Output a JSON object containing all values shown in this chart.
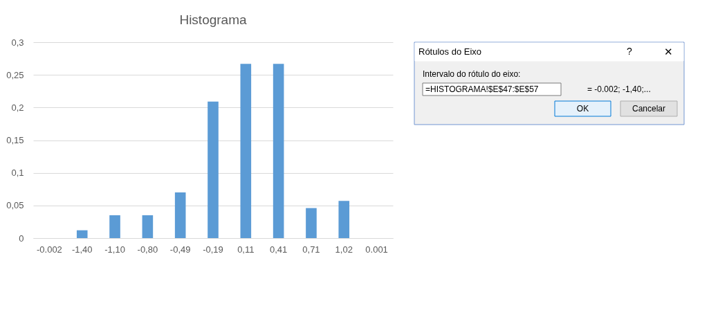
{
  "chart_data": [
    {
      "type": "bar",
      "title": "Histograma",
      "categories": [
        "-0.002",
        "-1,40",
        "-1,10",
        "-0,80",
        "-0,49",
        "-0,19",
        "0,11",
        "0,41",
        "0,71",
        "1,02",
        "0.001"
      ],
      "values": [
        0,
        0.012,
        0.035,
        0.035,
        0.07,
        0.209,
        0.267,
        0.267,
        0.046,
        0.057,
        0
      ],
      "color": "#5b9bd5",
      "ylim": [
        0,
        0.3
      ],
      "yticks": [
        0,
        {
          "value": 0.05,
          "label": "0,05"
        },
        {
          "value": 0.1,
          "label": "0,1"
        },
        {
          "value": 0.15,
          "label": "0,15"
        },
        {
          "value": 0.2,
          "label": "0,2"
        },
        {
          "value": 0.25,
          "label": "0,25"
        },
        {
          "value": 0.3,
          "label": "0,3"
        }
      ],
      "grid": "y"
    },
    {
      "type": "other",
      "title": "Rótulos do Eixo",
      "annotations": [
        "?",
        "✕",
        "Intervalo do rótulo do eixo:",
        "=HISTOGRAMA!$E$47:$E$57",
        "= -0.002; -1,40;...",
        "OK",
        "Cancelar"
      ]
    }
  ]
}
